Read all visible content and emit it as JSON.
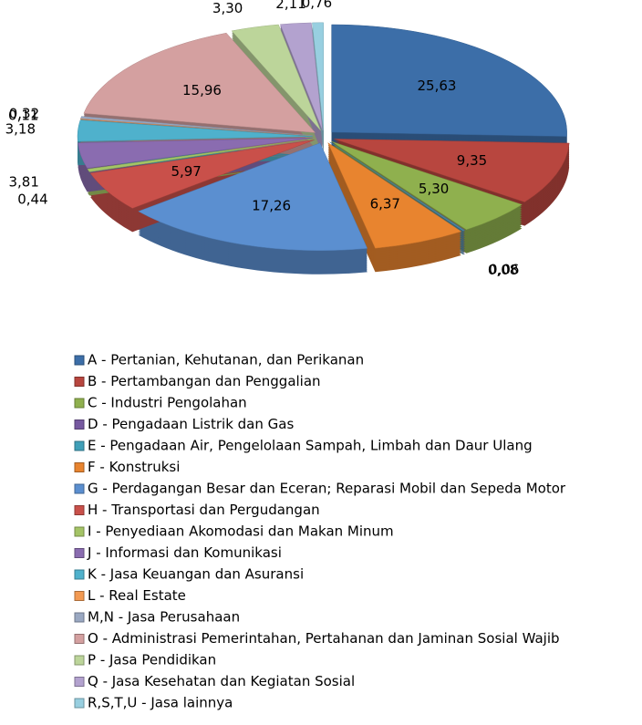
{
  "chart_data": {
    "type": "pie",
    "categories": [
      "A - Pertanian, Kehutanan, dan Perikanan",
      "B - Pertambangan dan Penggalian",
      "C - Industri Pengolahan",
      "D - Pengadaan Listrik dan Gas",
      "E - Pengadaan Air, Pengelolaan Sampah, Limbah dan Daur Ulang",
      "F - Konstruksi",
      "G - Perdagangan Besar dan Eceran; Reparasi Mobil dan Sepeda Motor",
      "H - Transportasi dan Pergudangan",
      "I - Penyediaan Akomodasi dan Makan Minum",
      "J - Informasi dan Komunikasi",
      "K - Jasa Keuangan dan Asuransi",
      "L - Real Estate",
      "M,N - Jasa Perusahaan",
      "O - Administrasi Pemerintahan, Pertahanan dan Jaminan Sosial Wajib",
      "P - Jasa Pendidikan",
      "Q - Jasa Kesehatan dan Kegiatan Sosial",
      "R,S,T,U - Jasa lainnya"
    ],
    "values": [
      25.63,
      9.35,
      5.3,
      0.06,
      0.08,
      6.37,
      17.26,
      5.97,
      0.44,
      3.81,
      3.18,
      0.11,
      0.32,
      15.96,
      3.3,
      2.11,
      0.76
    ],
    "value_labels": [
      "25,63",
      "9,35",
      "5,30",
      "0,06",
      "0,08",
      "6,37",
      "17,26",
      "5,97",
      "0,44",
      "3,81",
      "3,18",
      "0,11",
      "0,32",
      "15,96",
      "3,30",
      "2,11",
      "0,76"
    ],
    "colors": [
      "#3c6ea8",
      "#b8463f",
      "#8fb04e",
      "#7659a0",
      "#3f9fb8",
      "#e8842f",
      "#5b8fd0",
      "#c9504a",
      "#a4c466",
      "#8a6cb0",
      "#4fb1cc",
      "#f39a52",
      "#9aa8c2",
      "#d4a0a0",
      "#bcd59a",
      "#b3a2cf",
      "#98cfe0"
    ],
    "legend": "bottom"
  }
}
